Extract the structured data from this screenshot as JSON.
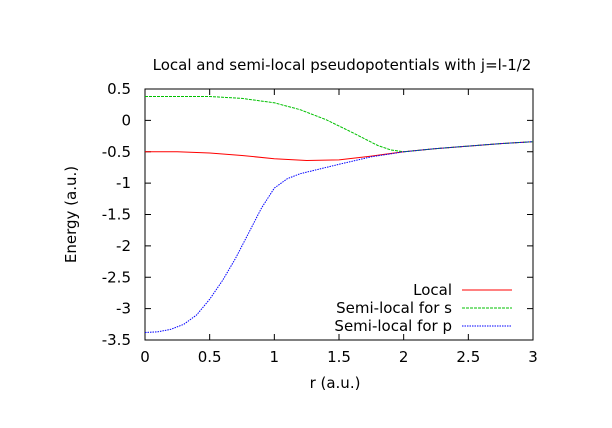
{
  "chart_data": {
    "type": "line",
    "title": "Local and semi-local pseudopotentials with j=l-1/2",
    "xlabel": "r (a.u.)",
    "ylabel": "Energy (a.u.)",
    "xlim": [
      0,
      3
    ],
    "ylim": [
      -3.5,
      0.5
    ],
    "xticks": [
      0,
      0.5,
      1,
      1.5,
      2,
      2.5,
      3
    ],
    "yticks": [
      0.5,
      0,
      -0.5,
      -1,
      -1.5,
      -2,
      -2.5,
      -3,
      -3.5
    ],
    "xtick_labels": [
      "0",
      "0.5",
      "1",
      "1.5",
      "2",
      "2.5",
      "3"
    ],
    "ytick_labels": [
      "0.5",
      "0",
      "-0.5",
      "-1",
      "-1.5",
      "-2",
      "-2.5",
      "-3",
      "-3.5"
    ],
    "grid": false,
    "legend_position": "bottom-right",
    "series": [
      {
        "name": "Local",
        "color": "#ff0000",
        "style": "solid",
        "x": [
          0,
          0.25,
          0.5,
          0.75,
          1.0,
          1.25,
          1.5,
          1.75,
          2.0,
          2.25,
          2.5,
          2.75,
          3.0
        ],
        "y": [
          -0.5,
          -0.5,
          -0.52,
          -0.56,
          -0.61,
          -0.64,
          -0.63,
          -0.57,
          -0.5,
          -0.45,
          -0.41,
          -0.37,
          -0.34
        ]
      },
      {
        "name": "Semi-local for s",
        "color": "#00c000",
        "style": "dashed",
        "x": [
          0,
          0.25,
          0.5,
          0.75,
          1.0,
          1.2,
          1.4,
          1.6,
          1.8,
          1.9,
          2.0,
          2.25,
          2.5,
          2.75,
          3.0
        ],
        "y": [
          0.38,
          0.38,
          0.38,
          0.35,
          0.28,
          0.17,
          0.01,
          -0.19,
          -0.4,
          -0.47,
          -0.5,
          -0.45,
          -0.41,
          -0.37,
          -0.34
        ]
      },
      {
        "name": "Semi-local for p",
        "color": "#0000ff",
        "style": "dotted",
        "x": [
          0,
          0.1,
          0.2,
          0.3,
          0.4,
          0.5,
          0.6,
          0.7,
          0.8,
          0.9,
          1.0,
          1.1,
          1.2,
          1.3,
          1.5,
          1.75,
          2.0,
          2.25,
          2.5,
          2.75,
          3.0
        ],
        "y": [
          -3.38,
          -3.37,
          -3.33,
          -3.25,
          -3.1,
          -2.85,
          -2.55,
          -2.2,
          -1.8,
          -1.4,
          -1.08,
          -0.93,
          -0.85,
          -0.8,
          -0.7,
          -0.58,
          -0.5,
          -0.45,
          -0.41,
          -0.37,
          -0.34
        ]
      }
    ]
  }
}
